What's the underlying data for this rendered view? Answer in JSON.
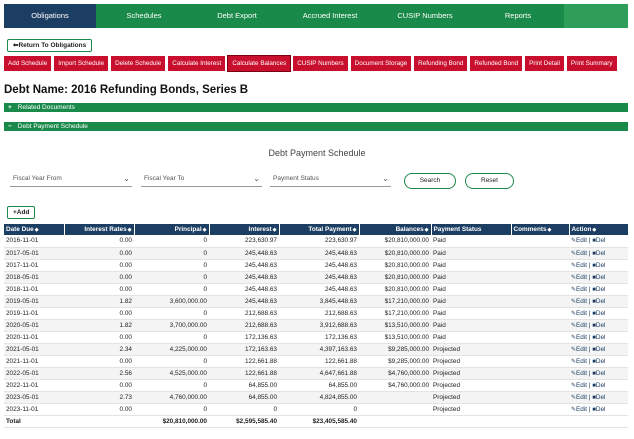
{
  "nav": {
    "tabs": [
      {
        "label": "Obligations",
        "active": true
      },
      {
        "label": "Schedules"
      },
      {
        "label": "Debt Export"
      },
      {
        "label": "Accrued Interest"
      },
      {
        "label": "CUSIP Numbers"
      },
      {
        "label": "Reports"
      },
      {
        "label": ""
      }
    ]
  },
  "back_label": "⬅Return To Obligations",
  "actions": [
    "Add Schedule",
    "Import Schedule",
    "Delete Schedule",
    "Calculate Interest",
    "Calculate Balances",
    "CUSIP Numbers",
    "Document Storage",
    "Refunding Bond",
    "Refunded Bond",
    "Print Detail",
    "Print Summary"
  ],
  "debt_title": "Debt Name: 2016 Refunding Bonds, Series B",
  "sections": {
    "related": {
      "sign": "+",
      "label": "Related Documents"
    },
    "schedule": {
      "sign": "−",
      "label": "Debt Payment Schedule"
    }
  },
  "schedule_title": "Debt Payment Schedule",
  "filters": {
    "fiscal_from": "Fiscal Year From",
    "fiscal_to": "Fiscal Year To",
    "status": "Payment Status"
  },
  "search_label": "Search",
  "reset_label": "Reset",
  "add_label": "+Add",
  "table": {
    "headers": [
      "Date Due",
      "Interest Rates",
      "Principal",
      "Interest",
      "Total Payment",
      "Balances",
      "Payment Status",
      "Comments",
      "Action"
    ],
    "rows": [
      [
        "2016-11-01",
        "0.00",
        "0",
        "223,630.97",
        "223,630.97",
        "$20,810,000.00",
        "Paid"
      ],
      [
        "2017-05-01",
        "0.00",
        "0",
        "245,448.63",
        "245,448.63",
        "$20,810,000.00",
        "Paid"
      ],
      [
        "2017-11-01",
        "0.00",
        "0",
        "245,448.63",
        "245,448.63",
        "$20,810,000.00",
        "Paid"
      ],
      [
        "2018-05-01",
        "0.00",
        "0",
        "245,448.63",
        "245,448.63",
        "$20,810,000.00",
        "Paid"
      ],
      [
        "2018-11-01",
        "0.00",
        "0",
        "245,448.63",
        "245,448.63",
        "$20,810,000.00",
        "Paid"
      ],
      [
        "2019-05-01",
        "1.82",
        "3,600,000.00",
        "245,448.63",
        "3,845,448.63",
        "$17,210,000.00",
        "Paid"
      ],
      [
        "2019-11-01",
        "0.00",
        "0",
        "212,688.63",
        "212,688.63",
        "$17,210,000.00",
        "Paid"
      ],
      [
        "2020-05-01",
        "1.82",
        "3,700,000.00",
        "212,688.63",
        "3,912,688.63",
        "$13,510,000.00",
        "Paid"
      ],
      [
        "2020-11-01",
        "0.00",
        "0",
        "172,136.63",
        "172,136.63",
        "$13,510,000.00",
        "Paid"
      ],
      [
        "2021-05-01",
        "2.34",
        "4,225,000.00",
        "172,163.63",
        "4,397,163.63",
        "$9,285,000.00",
        "Projected"
      ],
      [
        "2021-11-01",
        "0.00",
        "0",
        "122,661.88",
        "122,661.88",
        "$9,285,000.00",
        "Projected"
      ],
      [
        "2022-05-01",
        "2.56",
        "4,525,000.00",
        "122,661.88",
        "4,647,661.88",
        "$4,760,000.00",
        "Projected"
      ],
      [
        "2022-11-01",
        "0.00",
        "0",
        "64,855.00",
        "64,855.00",
        "$4,760,000.00",
        "Projected"
      ],
      [
        "2023-05-01",
        "2.73",
        "4,760,000.00",
        "64,855.00",
        "4,824,855.00",
        "",
        "Projected"
      ],
      [
        "2023-11-01",
        "0.00",
        "0",
        "0",
        "0",
        "",
        "Projected"
      ]
    ],
    "edit_label": "Edit",
    "del_label": "Del",
    "total": {
      "label": "Total",
      "principal": "$20,810,000.00",
      "interest": "$2,595,585.40",
      "payment": "$23,405,585.40"
    }
  }
}
